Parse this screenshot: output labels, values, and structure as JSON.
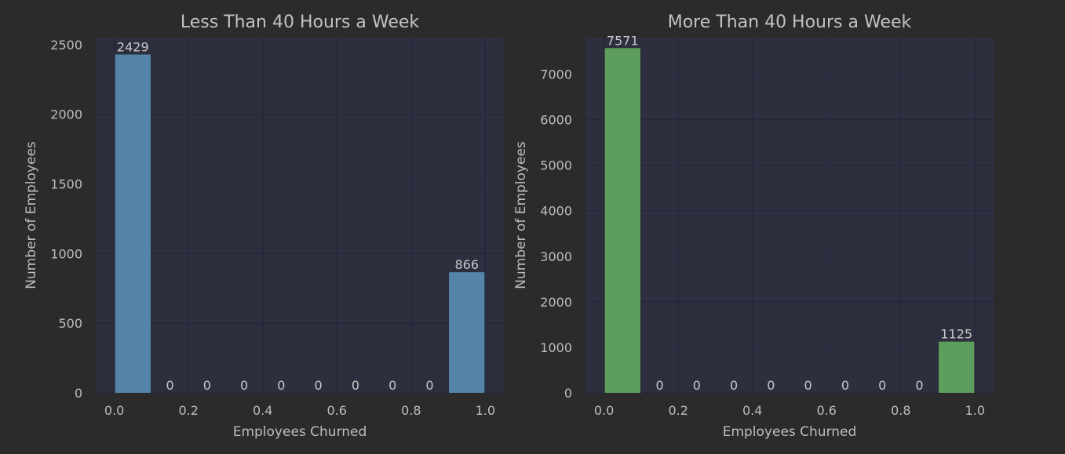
{
  "colors": {
    "background": "#2b2b2b",
    "plot_background": "#2d2e3e",
    "series_left": "#5484a8",
    "series_right": "#5c9e5b",
    "text": "#bdbdbd"
  },
  "chart_data": [
    {
      "type": "bar",
      "title": "Less Than 40 Hours a Week",
      "xlabel": "Employees Churned",
      "ylabel": "Number of Employees",
      "xlim": [
        -0.05,
        1.05
      ],
      "ylim": [
        0,
        2550
      ],
      "xticks": [
        "0.0",
        "0.2",
        "0.4",
        "0.6",
        "0.8",
        "1.0"
      ],
      "yticks": [
        "0",
        "500",
        "1000",
        "1500",
        "2000",
        "2500"
      ],
      "bin_edges": [
        0.0,
        0.1,
        0.2,
        0.3,
        0.4,
        0.5,
        0.6,
        0.7,
        0.8,
        0.9,
        1.0
      ],
      "values": [
        2429,
        0,
        0,
        0,
        0,
        0,
        0,
        0,
        0,
        866
      ],
      "value_labels": [
        "2429",
        "0",
        "0",
        "0",
        "0",
        "0",
        "0",
        "0",
        "0",
        "866"
      ],
      "color": "#5484a8",
      "grid": true
    },
    {
      "type": "bar",
      "title": "More Than 40 Hours a Week",
      "xlabel": "Employees Churned",
      "ylabel": "Number of Employees",
      "xlim": [
        -0.05,
        1.05
      ],
      "ylim": [
        0,
        7800
      ],
      "xticks": [
        "0.0",
        "0.2",
        "0.4",
        "0.6",
        "0.8",
        "1.0"
      ],
      "yticks": [
        "0",
        "1000",
        "2000",
        "3000",
        "4000",
        "5000",
        "6000",
        "7000"
      ],
      "bin_edges": [
        0.0,
        0.1,
        0.2,
        0.3,
        0.4,
        0.5,
        0.6,
        0.7,
        0.8,
        0.9,
        1.0
      ],
      "values": [
        7571,
        0,
        0,
        0,
        0,
        0,
        0,
        0,
        0,
        1125
      ],
      "value_labels": [
        "7571",
        "0",
        "0",
        "0",
        "0",
        "0",
        "0",
        "0",
        "0",
        "1125"
      ],
      "color": "#5c9e5b",
      "grid": true
    }
  ]
}
